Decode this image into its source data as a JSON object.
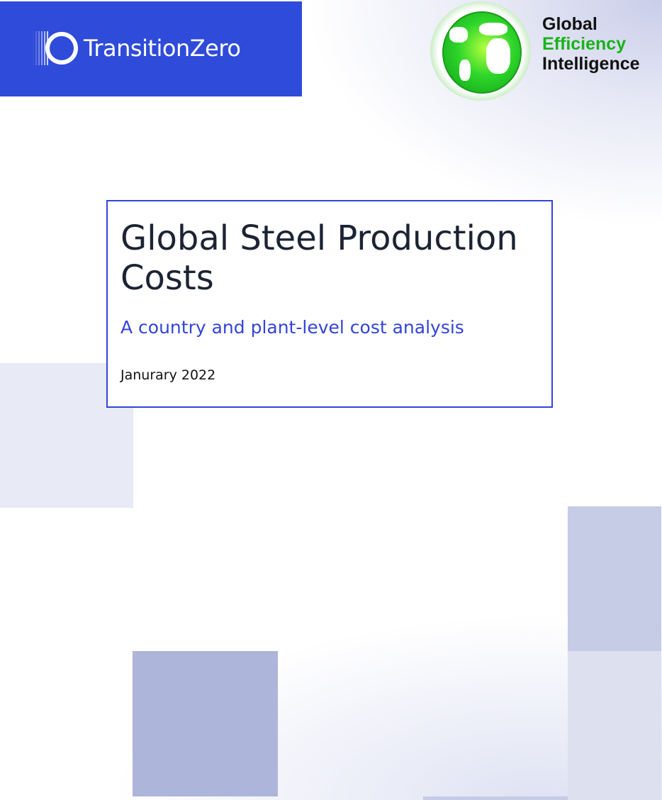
{
  "header": {
    "brand_logo_text": "TransitionZero",
    "partner_logo": {
      "line1": "Global",
      "line2": "Efficiency",
      "line3": "Intelligence"
    }
  },
  "cover": {
    "title": "Global Steel Production Costs",
    "subtitle": "A country and plant-level cost analysis",
    "date": "Janurary 2022"
  },
  "colors": {
    "brand_blue": "#2f4bd9",
    "accent": "#3344d8",
    "partner_green": "#19b21a"
  }
}
